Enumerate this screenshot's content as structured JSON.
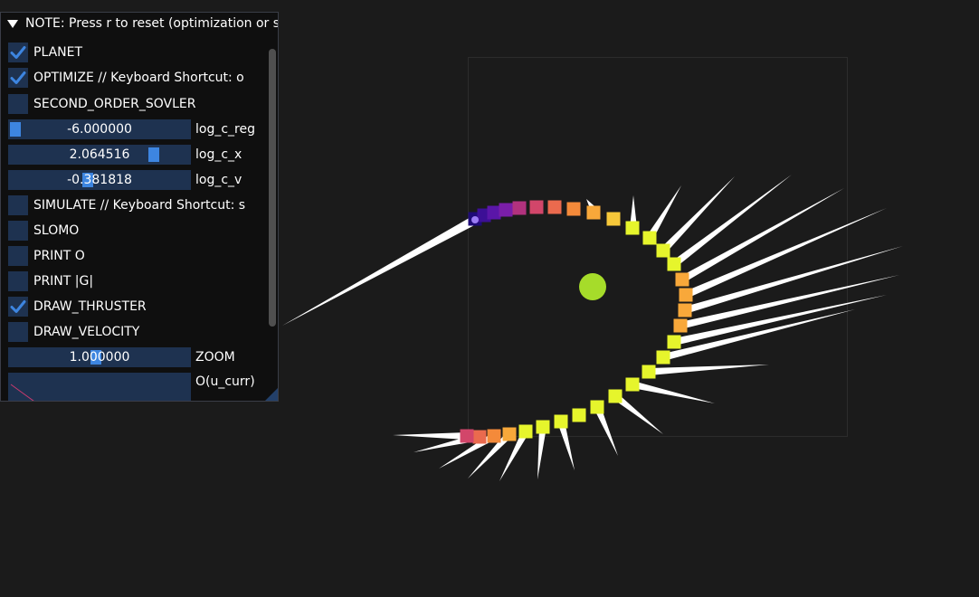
{
  "panel": {
    "title": "NOTE: Press r to reset (optimization or sim",
    "items": [
      {
        "type": "checkbox",
        "label": "PLANET",
        "checked": true
      },
      {
        "type": "checkbox",
        "label": "OPTIMIZE // Keyboard Shortcut: o",
        "checked": true
      },
      {
        "type": "checkbox",
        "label": "SECOND_ORDER_SOVLER",
        "checked": false
      },
      {
        "type": "slider",
        "label": "log_c_reg",
        "value": "-6.000000",
        "grab_fraction": 0.0
      },
      {
        "type": "slider",
        "label": "log_c_x",
        "value": "2.064516",
        "grab_fraction": 0.82
      },
      {
        "type": "slider",
        "label": "log_c_v",
        "value": "-0.381818",
        "grab_fraction": 0.43
      },
      {
        "type": "checkbox",
        "label": "SIMULATE // Keyboard Shortcut: s",
        "checked": false
      },
      {
        "type": "checkbox",
        "label": "SLOMO",
        "checked": false
      },
      {
        "type": "checkbox",
        "label": "PRINT  O",
        "checked": false
      },
      {
        "type": "checkbox",
        "label": "PRINT |G|",
        "checked": false
      },
      {
        "type": "checkbox",
        "label": "DRAW_THRUSTER",
        "checked": true
      },
      {
        "type": "checkbox",
        "label": "DRAW_VELOCITY",
        "checked": false
      },
      {
        "type": "slider",
        "label": "ZOOM",
        "value": "1.000000",
        "grab_fraction": 0.48
      },
      {
        "type": "plot",
        "label": "O(u_curr)"
      }
    ]
  },
  "colors": {
    "background": "#1b1b1b",
    "frame_bg": "#1e3250",
    "check_mark": "#3d85e0",
    "slider_grab": "#3d85e0",
    "planet": "#a6dc2a",
    "thruster": "#ffffff",
    "box_outline": "#2c2c2c",
    "plot_line": "#c93a6e"
  },
  "scene": {
    "planet_color": "#a6dc2a",
    "trajectory_colors": [
      "#1e0a78",
      "#3c0f96",
      "#5a16a8",
      "#7a1ea8",
      "#b2327e",
      "#d2466a",
      "#ea6a4e",
      "#f48a3a",
      "#f8a83a",
      "#f7c83a",
      "#eef03a",
      "#e6f52c"
    ]
  }
}
